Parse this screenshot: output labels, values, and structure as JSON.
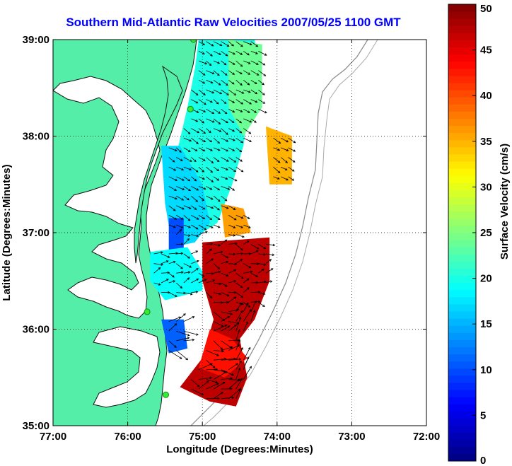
{
  "chart_data": {
    "type": "heatmap",
    "title": "Southern Mid-Atlantic Raw Velocities 2007/05/25 1100 GMT",
    "xlabel": "Longitude (Degrees:Minutes)",
    "ylabel": "Latitude (Degrees:Minutes)",
    "x_ticks": [
      {
        "value": -77,
        "label": "77:00"
      },
      {
        "value": -76,
        "label": "76:00"
      },
      {
        "value": -75,
        "label": "75:00"
      },
      {
        "value": -74,
        "label": "74:00"
      },
      {
        "value": -73,
        "label": "73:00"
      },
      {
        "value": -72,
        "label": "72:00"
      }
    ],
    "y_ticks": [
      {
        "value": 35,
        "label": "35:00"
      },
      {
        "value": 36,
        "label": "36:00"
      },
      {
        "value": 37,
        "label": "37:00"
      },
      {
        "value": 38,
        "label": "38:00"
      },
      {
        "value": 39,
        "label": "39:00"
      }
    ],
    "xlim": [
      -77,
      -72
    ],
    "ylim": [
      35,
      39
    ],
    "grid": true,
    "colorbar": {
      "label": "Surface Velocity (cm/s)",
      "min": 0,
      "max": 50,
      "ticks": [
        0,
        5,
        10,
        15,
        20,
        25,
        30,
        35,
        40,
        45,
        50
      ],
      "colormap": "jet"
    },
    "land_color": "#55eea8",
    "stations": [
      {
        "lon": -75.12,
        "lat": 39.0
      },
      {
        "lon": -75.16,
        "lat": 38.28
      },
      {
        "lon": -75.74,
        "lat": 36.18
      },
      {
        "lon": -75.49,
        "lat": 35.32
      }
    ],
    "velocity_regions": [
      {
        "polygon": [
          [
            -75.05,
            39.0
          ],
          [
            -74.3,
            39.0
          ],
          [
            -74.25,
            38.8
          ],
          [
            -74.4,
            38.2
          ],
          [
            -74.45,
            37.9
          ],
          [
            -74.6,
            37.5
          ],
          [
            -74.8,
            37.1
          ],
          [
            -75.0,
            37.0
          ],
          [
            -75.2,
            37.3
          ],
          [
            -75.35,
            37.8
          ],
          [
            -75.2,
            38.3
          ],
          [
            -75.1,
            38.7
          ]
        ],
        "speed": 20
      },
      {
        "polygon": [
          [
            -75.55,
            37.9
          ],
          [
            -75.3,
            37.9
          ],
          [
            -75.0,
            37.5
          ],
          [
            -74.9,
            37.1
          ],
          [
            -75.1,
            36.9
          ],
          [
            -75.4,
            36.85
          ],
          [
            -75.5,
            37.3
          ]
        ],
        "speed": 17
      },
      {
        "polygon": [
          [
            -74.65,
            39.0
          ],
          [
            -74.2,
            38.95
          ],
          [
            -74.2,
            38.3
          ],
          [
            -74.45,
            38.0
          ],
          [
            -74.65,
            38.3
          ]
        ],
        "speed": 24
      },
      {
        "polygon": [
          [
            -75.45,
            37.15
          ],
          [
            -75.25,
            37.15
          ],
          [
            -75.25,
            36.8
          ],
          [
            -75.45,
            36.8
          ]
        ],
        "speed": 10
      },
      {
        "polygon": [
          [
            -75.7,
            36.8
          ],
          [
            -75.2,
            36.85
          ],
          [
            -75.0,
            36.6
          ],
          [
            -75.0,
            36.4
          ],
          [
            -75.5,
            36.3
          ],
          [
            -75.7,
            36.5
          ]
        ],
        "speed": 19
      },
      {
        "polygon": [
          [
            -75.0,
            36.9
          ],
          [
            -74.1,
            36.95
          ],
          [
            -74.1,
            36.5
          ],
          [
            -74.3,
            36.1
          ],
          [
            -74.5,
            35.9
          ],
          [
            -74.4,
            35.5
          ],
          [
            -74.55,
            35.2
          ],
          [
            -74.9,
            35.25
          ],
          [
            -75.3,
            35.4
          ],
          [
            -75.0,
            35.7
          ],
          [
            -74.85,
            36.1
          ],
          [
            -75.0,
            36.5
          ]
        ],
        "speed": 47
      },
      {
        "polygon": [
          [
            -74.9,
            36.0
          ],
          [
            -74.6,
            35.9
          ],
          [
            -74.4,
            35.7
          ],
          [
            -74.7,
            35.5
          ],
          [
            -75.05,
            35.6
          ]
        ],
        "speed": 43
      },
      {
        "polygon": [
          [
            -75.55,
            36.1
          ],
          [
            -75.25,
            36.1
          ],
          [
            -75.2,
            35.8
          ],
          [
            -75.45,
            35.75
          ]
        ],
        "speed": 11
      },
      {
        "polygon": [
          [
            -74.75,
            37.3
          ],
          [
            -74.45,
            37.25
          ],
          [
            -74.35,
            37.0
          ],
          [
            -74.7,
            36.95
          ]
        ],
        "speed": 36
      },
      {
        "polygon": [
          [
            -74.15,
            38.1
          ],
          [
            -73.8,
            38.0
          ],
          [
            -73.8,
            37.5
          ],
          [
            -74.1,
            37.5
          ]
        ],
        "speed": 35
      }
    ]
  }
}
